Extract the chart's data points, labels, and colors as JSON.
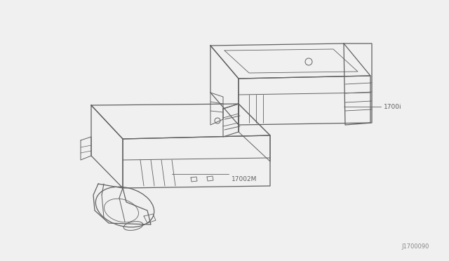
{
  "background_color": "#f0f0f0",
  "line_color": "#606060",
  "label_color": "#606060",
  "label_1": "1700i",
  "label_2": "17002M",
  "diagram_code": "J1700090",
  "fig_width": 6.4,
  "fig_height": 3.72,
  "dpi": 100
}
